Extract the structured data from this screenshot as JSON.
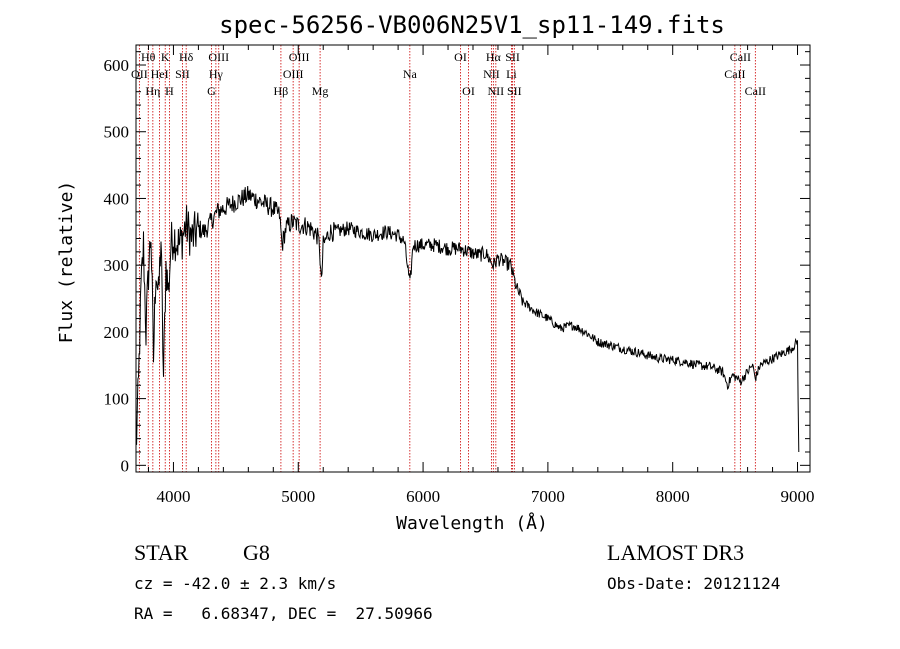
{
  "chart_data": {
    "type": "line",
    "title": "spec-56256-VB006N25V1_sp11-149.fits",
    "xlabel": "Wavelength (Å)",
    "ylabel": "Flux (relative)",
    "xlim": [
      3700,
      9100
    ],
    "ylim": [
      -10,
      630
    ],
    "xticks": [
      4000,
      5000,
      6000,
      7000,
      8000,
      9000
    ],
    "yticks": [
      0,
      100,
      200,
      300,
      400,
      500,
      600
    ],
    "series": [
      {
        "name": "flux",
        "x": [
          3700,
          3720,
          3740,
          3760,
          3780,
          3800,
          3820,
          3840,
          3860,
          3880,
          3900,
          3920,
          3940,
          3960,
          3980,
          4000,
          4050,
          4100,
          4150,
          4200,
          4250,
          4300,
          4350,
          4400,
          4450,
          4500,
          4550,
          4600,
          4650,
          4700,
          4750,
          4800,
          4850,
          4870,
          4900,
          4950,
          5000,
          5050,
          5100,
          5150,
          5170,
          5185,
          5200,
          5250,
          5300,
          5400,
          5500,
          5600,
          5700,
          5800,
          5850,
          5895,
          5920,
          6000,
          6100,
          6200,
          6300,
          6400,
          6450,
          6500,
          6563,
          6600,
          6700,
          6750,
          6800,
          6900,
          7000,
          7100,
          7200,
          7300,
          7400,
          7500,
          7600,
          7700,
          7800,
          7900,
          8000,
          8100,
          8200,
          8300,
          8400,
          8440,
          8480,
          8520,
          8542,
          8580,
          8640,
          8662,
          8700,
          8800,
          8900,
          8950,
          9000,
          9010
        ],
        "values": [
          20,
          120,
          260,
          330,
          200,
          290,
          350,
          160,
          300,
          250,
          340,
          130,
          300,
          260,
          330,
          345,
          330,
          360,
          340,
          355,
          350,
          365,
          380,
          385,
          390,
          395,
          400,
          405,
          400,
          395,
          390,
          385,
          375,
          330,
          355,
          365,
          360,
          360,
          355,
          345,
          330,
          270,
          330,
          350,
          350,
          355,
          350,
          345,
          350,
          345,
          335,
          270,
          330,
          330,
          330,
          325,
          325,
          318,
          315,
          318,
          300,
          310,
          300,
          265,
          245,
          230,
          220,
          205,
          210,
          200,
          185,
          180,
          175,
          170,
          165,
          160,
          158,
          155,
          150,
          148,
          140,
          120,
          135,
          130,
          125,
          135,
          150,
          130,
          150,
          160,
          170,
          175,
          185,
          20
        ]
      }
    ],
    "lines": [
      {
        "name": "OII",
        "wl": 3727,
        "tier": 1
      },
      {
        "name": "Hθ",
        "wl": 3798,
        "tier": 0
      },
      {
        "name": "Hη",
        "wl": 3835,
        "tier": 2
      },
      {
        "name": "HeI",
        "wl": 3889,
        "tier": 1
      },
      {
        "name": "K",
        "wl": 3934,
        "tier": 0
      },
      {
        "name": "H",
        "wl": 3968,
        "tier": 2
      },
      {
        "name": "SII",
        "wl": 4072,
        "tier": 1
      },
      {
        "name": "Hδ",
        "wl": 4102,
        "tier": 0
      },
      {
        "name": "G",
        "wl": 4305,
        "tier": 2
      },
      {
        "name": "Hγ",
        "wl": 4340,
        "tier": 1
      },
      {
        "name": "OIII",
        "wl": 4363,
        "tier": 0
      },
      {
        "name": "Hβ",
        "wl": 4861,
        "tier": 2
      },
      {
        "name": "OIII",
        "wl": 4959,
        "tier": 1
      },
      {
        "name": "OIII",
        "wl": 5007,
        "tier": 0
      },
      {
        "name": "Mg",
        "wl": 5175,
        "tier": 2
      },
      {
        "name": "Na",
        "wl": 5894,
        "tier": 1
      },
      {
        "name": "OI",
        "wl": 6300,
        "tier": 0
      },
      {
        "name": "OI",
        "wl": 6364,
        "tier": 2
      },
      {
        "name": "NII",
        "wl": 6548,
        "tier": 1
      },
      {
        "name": "Hα",
        "wl": 6563,
        "tier": 0
      },
      {
        "name": "NII",
        "wl": 6583,
        "tier": 2
      },
      {
        "name": "Li",
        "wl": 6708,
        "tier": 1
      },
      {
        "name": "SII",
        "wl": 6717,
        "tier": 0
      },
      {
        "name": "SII",
        "wl": 6731,
        "tier": 2
      },
      {
        "name": "CaII",
        "wl": 8498,
        "tier": 1
      },
      {
        "name": "CaII",
        "wl": 8542,
        "tier": 0
      },
      {
        "name": "CaII",
        "wl": 8662,
        "tier": 2
      }
    ]
  },
  "info": {
    "class_label": "STAR",
    "subclass": "G8",
    "survey": "LAMOST DR3",
    "cz": "cz = -42.0 ± 2.3 km/s",
    "obs_date": "Obs-Date: 20121124",
    "coords": "RA =   6.68347, DEC =  27.50966"
  },
  "colors": {
    "spectrum": "#000000",
    "line_markers": "#cc0000",
    "frame": "#000000"
  }
}
